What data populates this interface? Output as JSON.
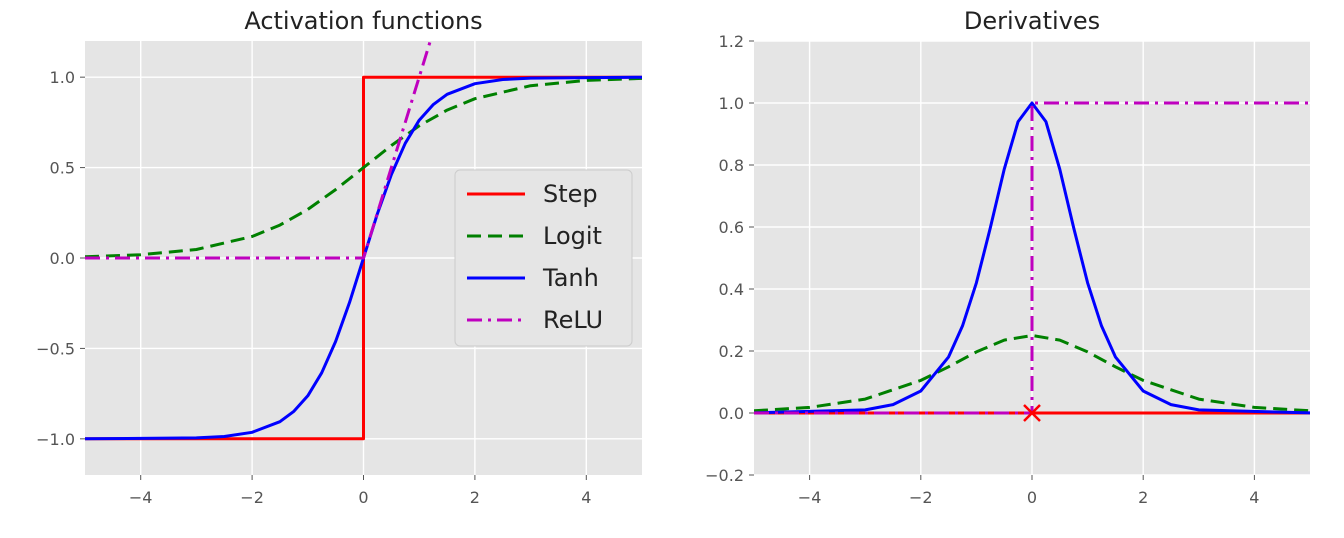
{
  "figure": {
    "background": "#ffffff",
    "axes_bg": "#e5e5e5",
    "grid_color": "#ffffff"
  },
  "chart_data": [
    {
      "type": "line",
      "title": "Activation functions",
      "xlabel": "",
      "ylabel": "",
      "xlim": [
        -5,
        5
      ],
      "ylim": [
        -1.2,
        1.2
      ],
      "xticks": [
        -4,
        -2,
        0,
        2,
        4
      ],
      "xtick_labels": [
        "−4",
        "−2",
        "0",
        "2",
        "4"
      ],
      "yticks": [
        -1.0,
        -0.5,
        0.0,
        0.5,
        1.0
      ],
      "ytick_labels": [
        "−1.0",
        "−0.5",
        "0.0",
        "0.5",
        "1.0"
      ],
      "grid": true,
      "legend": {
        "position": "center-right",
        "entries": [
          "Step",
          "Logit",
          "Tanh",
          "ReLU"
        ]
      },
      "series": [
        {
          "name": "Step",
          "color": "#ff0000",
          "style": "solid",
          "x": [
            -5,
            0,
            0,
            5
          ],
          "y": [
            -1,
            -1,
            1,
            1
          ]
        },
        {
          "name": "Logit",
          "color": "#008000",
          "style": "dashed",
          "x": [
            -5,
            -4,
            -3,
            -2,
            -1.5,
            -1,
            -0.5,
            0,
            0.5,
            1,
            1.5,
            2,
            3,
            4,
            5
          ],
          "y": [
            0.007,
            0.018,
            0.047,
            0.119,
            0.182,
            0.269,
            0.378,
            0.5,
            0.622,
            0.731,
            0.818,
            0.881,
            0.953,
            0.982,
            0.993
          ]
        },
        {
          "name": "Tanh",
          "color": "#0000ff",
          "style": "solid",
          "x": [
            -5,
            -3,
            -2.5,
            -2,
            -1.5,
            -1.25,
            -1,
            -0.75,
            -0.5,
            -0.25,
            0,
            0.25,
            0.5,
            0.75,
            1,
            1.25,
            1.5,
            2,
            2.5,
            3,
            5
          ],
          "y": [
            -1.0,
            -0.995,
            -0.987,
            -0.964,
            -0.905,
            -0.848,
            -0.762,
            -0.635,
            -0.462,
            -0.245,
            0,
            0.245,
            0.462,
            0.635,
            0.762,
            0.848,
            0.905,
            0.964,
            0.987,
            0.995,
            1.0
          ]
        },
        {
          "name": "ReLU",
          "color": "#bf00bf",
          "style": "dashdot",
          "x": [
            -5,
            0,
            1.2
          ],
          "y": [
            0,
            0,
            1.2
          ]
        }
      ]
    },
    {
      "type": "line",
      "title": "Derivatives",
      "xlabel": "",
      "ylabel": "",
      "xlim": [
        -5,
        5
      ],
      "ylim": [
        -0.2,
        1.2
      ],
      "xticks": [
        -4,
        -2,
        0,
        2,
        4
      ],
      "xtick_labels": [
        "−4",
        "−2",
        "0",
        "2",
        "4"
      ],
      "yticks": [
        -0.2,
        0.0,
        0.2,
        0.4,
        0.6,
        0.8,
        1.0,
        1.2
      ],
      "ytick_labels": [
        "−0.2",
        "0.0",
        "0.2",
        "0.4",
        "0.6",
        "0.8",
        "1.0",
        "1.2"
      ],
      "grid": true,
      "legend": null,
      "series": [
        {
          "name": "Step",
          "color": "#ff0000",
          "style": "solid",
          "x": [
            -5,
            5
          ],
          "y": [
            0,
            0
          ]
        },
        {
          "name": "Logit",
          "color": "#008000",
          "style": "dashed",
          "x": [
            -5,
            -4,
            -3,
            -2,
            -1.5,
            -1,
            -0.5,
            0,
            0.5,
            1,
            1.5,
            2,
            3,
            4,
            5
          ],
          "y": [
            0.007,
            0.018,
            0.045,
            0.105,
            0.149,
            0.197,
            0.235,
            0.25,
            0.235,
            0.197,
            0.149,
            0.105,
            0.045,
            0.018,
            0.007
          ]
        },
        {
          "name": "Tanh",
          "color": "#0000ff",
          "style": "solid",
          "x": [
            -5,
            -3,
            -2.5,
            -2,
            -1.5,
            -1.25,
            -1,
            -0.75,
            -0.5,
            -0.25,
            0,
            0.25,
            0.5,
            0.75,
            1,
            1.25,
            1.5,
            2,
            2.5,
            3,
            5
          ],
          "y": [
            0.0002,
            0.01,
            0.027,
            0.071,
            0.181,
            0.281,
            0.42,
            0.597,
            0.786,
            0.94,
            1.0,
            0.94,
            0.786,
            0.597,
            0.42,
            0.281,
            0.181,
            0.071,
            0.027,
            0.01,
            0.0002
          ]
        },
        {
          "name": "ReLU",
          "color": "#bf00bf",
          "style": "dashdot",
          "x": [
            -5,
            0,
            0,
            5
          ],
          "y": [
            0,
            0,
            1,
            1
          ]
        }
      ],
      "annotations": [
        {
          "type": "marker",
          "shape": "x",
          "x": 0,
          "y": 0,
          "color": "#ff0000"
        }
      ]
    }
  ]
}
